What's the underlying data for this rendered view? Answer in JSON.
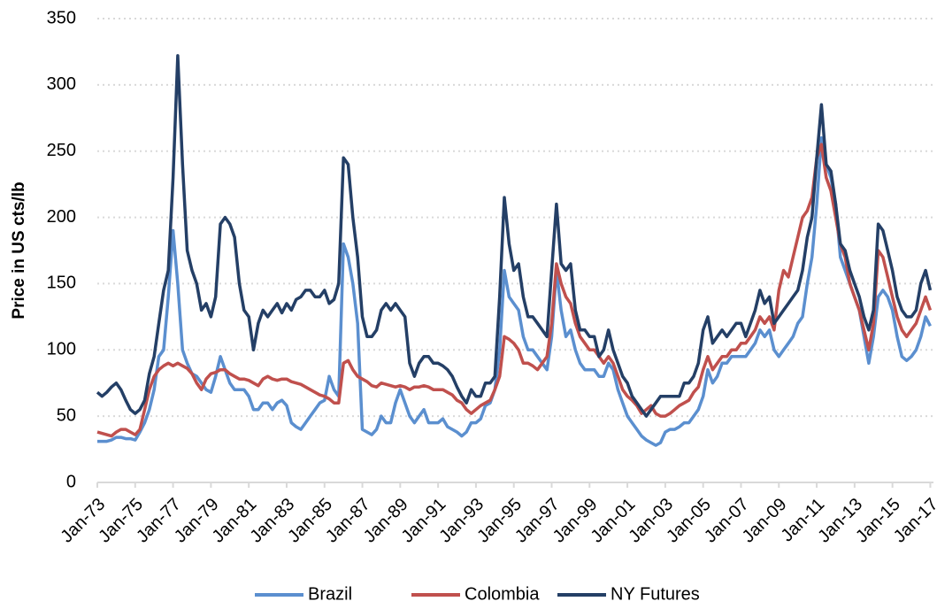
{
  "chart_data": {
    "type": "line",
    "y_label": "Price in US cts/lb",
    "ylim": [
      0,
      350
    ],
    "yticks": [
      0,
      50,
      100,
      150,
      200,
      250,
      300,
      350
    ],
    "grid": true,
    "legend": "bottom",
    "xlim": [
      "1973-01",
      "2017-03"
    ],
    "xticks": [
      {
        "value": "1973-01",
        "label": "Jan-73"
      },
      {
        "value": "1975-01",
        "label": "Jan-75"
      },
      {
        "value": "1977-01",
        "label": "Jan-77"
      },
      {
        "value": "1979-01",
        "label": "Jan-79"
      },
      {
        "value": "1981-01",
        "label": "Jan-81"
      },
      {
        "value": "1983-01",
        "label": "Jan-83"
      },
      {
        "value": "1985-01",
        "label": "Jan-85"
      },
      {
        "value": "1987-01",
        "label": "Jan-87"
      },
      {
        "value": "1989-01",
        "label": "Jan-89"
      },
      {
        "value": "1991-01",
        "label": "Jan-91"
      },
      {
        "value": "1993-01",
        "label": "Jan-93"
      },
      {
        "value": "1995-01",
        "label": "Jan-95"
      },
      {
        "value": "1997-01",
        "label": "Jan-97"
      },
      {
        "value": "1999-01",
        "label": "Jan-99"
      },
      {
        "value": "2001-01",
        "label": "Jan-01"
      },
      {
        "value": "2003-01",
        "label": "Jan-03"
      },
      {
        "value": "2005-01",
        "label": "Jan-05"
      },
      {
        "value": "2007-01",
        "label": "Jan-07"
      },
      {
        "value": "2009-01",
        "label": "Jan-09"
      },
      {
        "value": "2011-01",
        "label": "Jan-11"
      },
      {
        "value": "2013-01",
        "label": "Jan-13"
      },
      {
        "value": "2015-01",
        "label": "Jan-15"
      },
      {
        "value": "2017-01",
        "label": "Jan-17"
      }
    ],
    "x": [
      "1973-01",
      "1973-04",
      "1973-07",
      "1973-10",
      "1974-01",
      "1974-04",
      "1974-07",
      "1974-10",
      "1975-01",
      "1975-04",
      "1975-07",
      "1975-10",
      "1976-01",
      "1976-04",
      "1976-07",
      "1976-10",
      "1977-01",
      "1977-04",
      "1977-07",
      "1977-10",
      "1978-01",
      "1978-04",
      "1978-07",
      "1978-10",
      "1979-01",
      "1979-04",
      "1979-07",
      "1979-10",
      "1980-01",
      "1980-04",
      "1980-07",
      "1980-10",
      "1981-01",
      "1981-04",
      "1981-07",
      "1981-10",
      "1982-01",
      "1982-04",
      "1982-07",
      "1982-10",
      "1983-01",
      "1983-04",
      "1983-07",
      "1983-10",
      "1984-01",
      "1984-04",
      "1984-07",
      "1984-10",
      "1985-01",
      "1985-04",
      "1985-07",
      "1985-10",
      "1986-01",
      "1986-04",
      "1986-07",
      "1986-10",
      "1987-01",
      "1987-04",
      "1987-07",
      "1987-10",
      "1988-01",
      "1988-04",
      "1988-07",
      "1988-10",
      "1989-01",
      "1989-04",
      "1989-07",
      "1989-10",
      "1990-01",
      "1990-04",
      "1990-07",
      "1990-10",
      "1991-01",
      "1991-04",
      "1991-07",
      "1991-10",
      "1992-01",
      "1992-04",
      "1992-07",
      "1992-10",
      "1993-01",
      "1993-04",
      "1993-07",
      "1993-10",
      "1994-01",
      "1994-04",
      "1994-07",
      "1994-10",
      "1995-01",
      "1995-04",
      "1995-07",
      "1995-10",
      "1996-01",
      "1996-04",
      "1996-07",
      "1996-10",
      "1997-01",
      "1997-04",
      "1997-07",
      "1997-10",
      "1998-01",
      "1998-04",
      "1998-07",
      "1998-10",
      "1999-01",
      "1999-04",
      "1999-07",
      "1999-10",
      "2000-01",
      "2000-04",
      "2000-07",
      "2000-10",
      "2001-01",
      "2001-04",
      "2001-07",
      "2001-10",
      "2002-01",
      "2002-04",
      "2002-07",
      "2002-10",
      "2003-01",
      "2003-04",
      "2003-07",
      "2003-10",
      "2004-01",
      "2004-04",
      "2004-07",
      "2004-10",
      "2005-01",
      "2005-04",
      "2005-07",
      "2005-10",
      "2006-01",
      "2006-04",
      "2006-07",
      "2006-10",
      "2007-01",
      "2007-04",
      "2007-07",
      "2007-10",
      "2008-01",
      "2008-04",
      "2008-07",
      "2008-10",
      "2009-01",
      "2009-04",
      "2009-07",
      "2009-10",
      "2010-01",
      "2010-04",
      "2010-07",
      "2010-10",
      "2011-01",
      "2011-04",
      "2011-07",
      "2011-10",
      "2012-01",
      "2012-04",
      "2012-07",
      "2012-10",
      "2013-01",
      "2013-04",
      "2013-07",
      "2013-10",
      "2014-01",
      "2014-04",
      "2014-07",
      "2014-10",
      "2015-01",
      "2015-04",
      "2015-07",
      "2015-10",
      "2016-01",
      "2016-04",
      "2016-07",
      "2016-10",
      "2017-01"
    ],
    "series": [
      {
        "name": "Brazil",
        "color": "#5b8fcf",
        "values": [
          31,
          31,
          31,
          32,
          34,
          34,
          33,
          33,
          32,
          38,
          45,
          55,
          70,
          95,
          100,
          140,
          190,
          150,
          100,
          90,
          82,
          80,
          75,
          70,
          68,
          80,
          95,
          85,
          75,
          70,
          70,
          70,
          65,
          55,
          55,
          60,
          60,
          55,
          60,
          62,
          58,
          45,
          42,
          40,
          45,
          50,
          55,
          60,
          62,
          80,
          70,
          65,
          180,
          170,
          150,
          120,
          40,
          38,
          36,
          40,
          50,
          45,
          45,
          60,
          70,
          60,
          50,
          45,
          50,
          55,
          45,
          45,
          45,
          48,
          42,
          40,
          38,
          35,
          38,
          45,
          45,
          48,
          58,
          60,
          70,
          100,
          160,
          140,
          135,
          130,
          110,
          100,
          100,
          95,
          90,
          85,
          110,
          160,
          130,
          110,
          115,
          100,
          90,
          85,
          85,
          85,
          80,
          80,
          90,
          85,
          70,
          60,
          50,
          45,
          40,
          35,
          32,
          30,
          28,
          30,
          38,
          40,
          40,
          42,
          45,
          45,
          50,
          55,
          65,
          85,
          75,
          80,
          90,
          90,
          95,
          95,
          95,
          95,
          100,
          105,
          115,
          110,
          115,
          100,
          95,
          100,
          105,
          110,
          120,
          125,
          150,
          170,
          210,
          260,
          240,
          230,
          210,
          170,
          160,
          150,
          140,
          130,
          110,
          90,
          110,
          140,
          145,
          140,
          130,
          110,
          95,
          92,
          95,
          100,
          110,
          125,
          118
        ]
      },
      {
        "name": "Colombia",
        "color": "#c0504d",
        "values": [
          38,
          37,
          36,
          35,
          38,
          40,
          40,
          38,
          36,
          40,
          55,
          70,
          80,
          85,
          88,
          90,
          88,
          90,
          88,
          86,
          82,
          75,
          70,
          78,
          82,
          83,
          85,
          85,
          82,
          80,
          78,
          78,
          77,
          75,
          73,
          78,
          80,
          78,
          77,
          78,
          78,
          76,
          75,
          74,
          72,
          70,
          68,
          66,
          65,
          63,
          60,
          60,
          90,
          92,
          85,
          80,
          78,
          76,
          73,
          72,
          75,
          74,
          73,
          72,
          73,
          72,
          70,
          72,
          72,
          73,
          72,
          70,
          70,
          70,
          68,
          66,
          62,
          60,
          55,
          52,
          55,
          58,
          60,
          62,
          70,
          80,
          110,
          108,
          105,
          100,
          90,
          90,
          88,
          85,
          90,
          95,
          120,
          165,
          150,
          140,
          135,
          120,
          110,
          105,
          100,
          100,
          95,
          90,
          95,
          90,
          80,
          70,
          65,
          62,
          58,
          52,
          55,
          58,
          52,
          50,
          50,
          52,
          55,
          58,
          60,
          62,
          68,
          72,
          85,
          95,
          85,
          90,
          95,
          95,
          100,
          100,
          105,
          105,
          110,
          115,
          125,
          120,
          125,
          115,
          145,
          160,
          155,
          170,
          185,
          200,
          205,
          215,
          245,
          255,
          230,
          220,
          200,
          180,
          170,
          150,
          140,
          130,
          115,
          100,
          120,
          175,
          170,
          155,
          140,
          125,
          115,
          110,
          115,
          120,
          130,
          140,
          130
        ]
      },
      {
        "name": "NY Futures",
        "color": "#243f66",
        "values": [
          68,
          65,
          68,
          72,
          75,
          70,
          62,
          55,
          52,
          55,
          62,
          82,
          95,
          120,
          145,
          160,
          230,
          322,
          240,
          175,
          160,
          150,
          130,
          135,
          125,
          140,
          195,
          200,
          195,
          185,
          150,
          130,
          125,
          100,
          120,
          130,
          125,
          130,
          135,
          128,
          135,
          130,
          138,
          140,
          145,
          145,
          140,
          140,
          145,
          135,
          138,
          150,
          245,
          240,
          200,
          170,
          125,
          110,
          110,
          115,
          130,
          135,
          130,
          135,
          130,
          125,
          90,
          80,
          90,
          95,
          95,
          90,
          90,
          88,
          85,
          80,
          72,
          65,
          60,
          70,
          65,
          65,
          75,
          75,
          80,
          140,
          215,
          180,
          160,
          165,
          140,
          125,
          125,
          120,
          115,
          110,
          160,
          210,
          165,
          160,
          165,
          130,
          115,
          115,
          110,
          110,
          95,
          100,
          115,
          100,
          90,
          80,
          75,
          65,
          60,
          55,
          50,
          55,
          60,
          65,
          65,
          65,
          65,
          65,
          75,
          75,
          80,
          90,
          115,
          125,
          105,
          110,
          115,
          110,
          115,
          120,
          120,
          110,
          120,
          130,
          145,
          135,
          140,
          120,
          125,
          130,
          135,
          140,
          145,
          160,
          185,
          200,
          245,
          285,
          240,
          235,
          210,
          180,
          175,
          160,
          150,
          140,
          125,
          115,
          130,
          195,
          190,
          175,
          160,
          140,
          130,
          125,
          125,
          130,
          150,
          160,
          145
        ]
      }
    ]
  }
}
